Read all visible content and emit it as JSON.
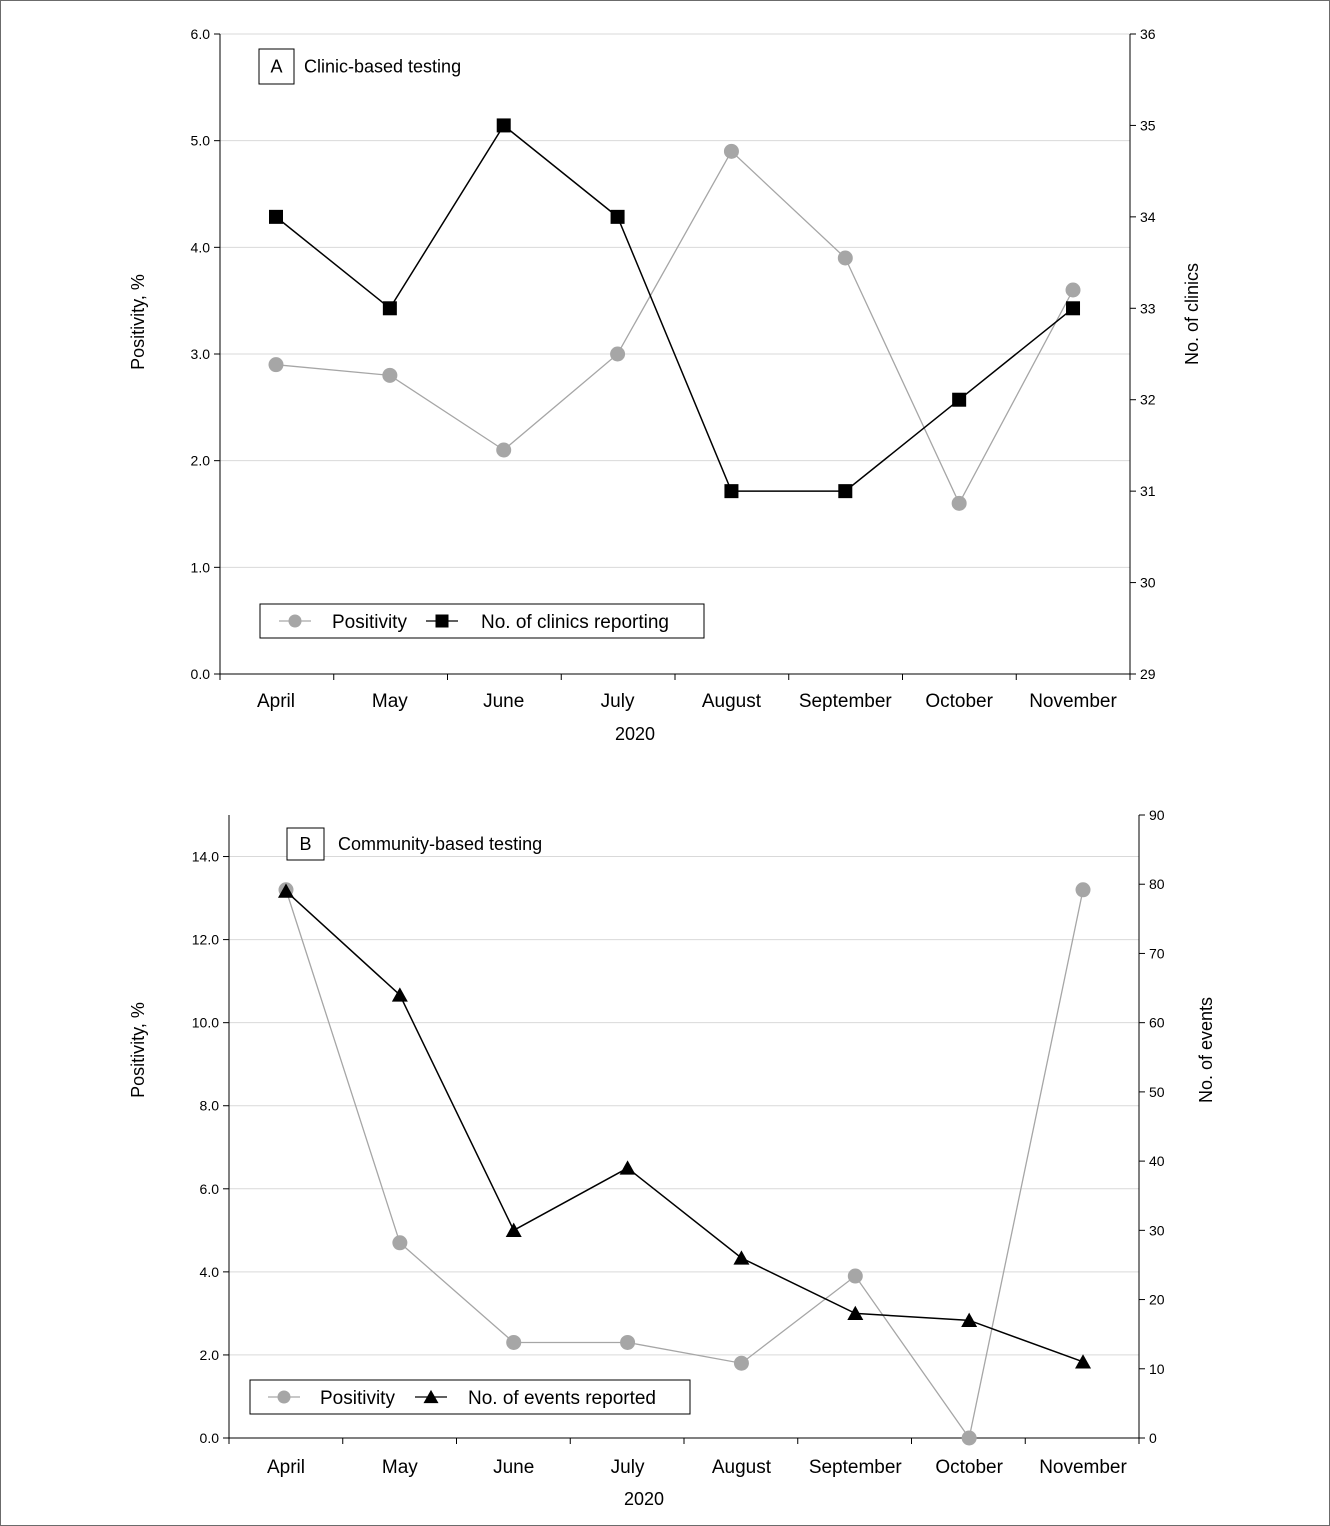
{
  "chart_data": [
    {
      "panel": "A",
      "type": "line",
      "title": "Clinic-based testing",
      "categories": [
        "April",
        "May",
        "June",
        "July",
        "August",
        "September",
        "October",
        "November"
      ],
      "xlabel": "2020",
      "ylabel": "Positivity, %",
      "y2label": "No. of clinics",
      "ylim": [
        0,
        6
      ],
      "y2lim": [
        29,
        36
      ],
      "yticks": [
        "0.0",
        "1.0",
        "2.0",
        "3.0",
        "4.0",
        "5.0",
        "6.0"
      ],
      "y2ticks": [
        "29",
        "30",
        "31",
        "32",
        "33",
        "34",
        "35",
        "36"
      ],
      "grid": true,
      "legend_position": "bottom-left",
      "series": [
        {
          "name": "Positivity",
          "axis": "left",
          "marker": "circle",
          "color": "#a6a6a6",
          "values": [
            2.9,
            2.8,
            2.1,
            3.0,
            4.9,
            3.9,
            1.6,
            3.6
          ]
        },
        {
          "name": "No. of clinics reporting",
          "axis": "right",
          "marker": "square",
          "color": "#000000",
          "values": [
            34,
            33,
            35,
            34,
            31,
            31,
            32,
            33
          ]
        }
      ]
    },
    {
      "panel": "B",
      "type": "line",
      "title": "Community-based testing",
      "categories": [
        "April",
        "May",
        "June",
        "July",
        "August",
        "September",
        "October",
        "November"
      ],
      "xlabel": "2020",
      "ylabel": "Positivity, %",
      "y2label": "No. of events",
      "ylim": [
        0,
        15
      ],
      "y2lim": [
        0,
        90
      ],
      "yticks": [
        "0.0",
        "2.0",
        "4.0",
        "6.0",
        "8.0",
        "10.0",
        "12.0",
        "14.0"
      ],
      "y2ticks": [
        "0",
        "10",
        "20",
        "30",
        "40",
        "50",
        "60",
        "70",
        "80",
        "90"
      ],
      "grid": true,
      "legend_position": "bottom-left",
      "series": [
        {
          "name": "Positivity",
          "axis": "left",
          "marker": "circle",
          "color": "#a6a6a6",
          "values": [
            13.2,
            4.7,
            2.3,
            2.3,
            1.8,
            3.9,
            0.0,
            13.2
          ]
        },
        {
          "name": "No. of events reported",
          "axis": "right",
          "marker": "triangle",
          "color": "#000000",
          "values": [
            79,
            64,
            30,
            39,
            26,
            18,
            17,
            11
          ]
        }
      ]
    }
  ]
}
